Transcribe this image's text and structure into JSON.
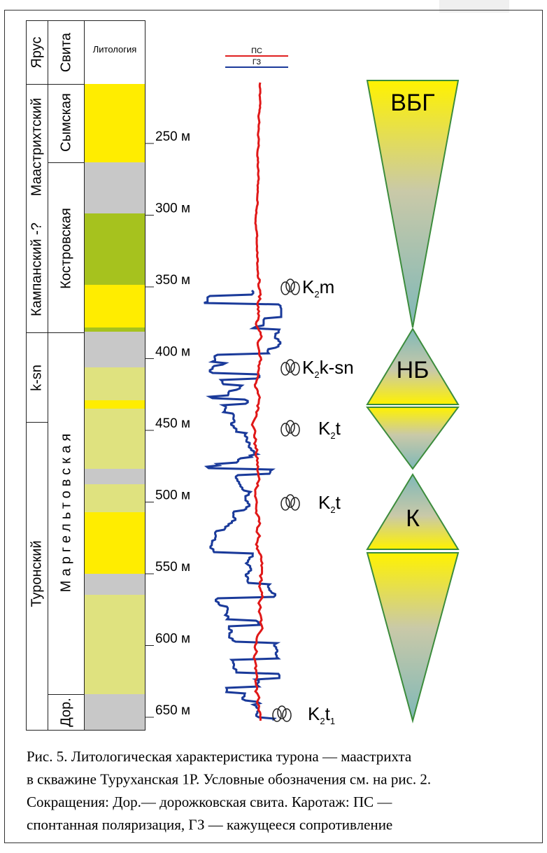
{
  "header": {
    "columns": [
      "Ярус",
      "Свита",
      "Литология"
    ]
  },
  "stages": [
    "Маастрихтский",
    "Кампанский -?",
    "k-sn",
    "Туронский"
  ],
  "suites": [
    "Сымская",
    "Костровская",
    "Маргельтовская",
    "Дор."
  ],
  "depths": [
    "250 м",
    "300 м",
    "350 м",
    "400 м",
    "450 м",
    "500 м",
    "550 м",
    "600 м",
    "650 м"
  ],
  "legend": [
    "ПС",
    "ГЗ"
  ],
  "fossils": [
    {
      "base": "K",
      "sub": "2",
      "rest": "m"
    },
    {
      "base": "K",
      "sub": "2",
      "rest": "k-sn"
    },
    {
      "base": "K",
      "sub": "2",
      "rest": "t"
    },
    {
      "base": "K",
      "sub": "2",
      "rest": "t"
    },
    {
      "base": "K",
      "sub": "2",
      "rest": "t",
      "sub2": "1"
    }
  ],
  "cycles": [
    "ВБГ",
    "НБ",
    "К"
  ],
  "caption": [
    "Рис. 5. Литологическая характеристика турона — маастрихта",
    "в скважине Туруханская 1Р. Условные обозначения см. на рис. 2.",
    "Сокращения: Дор.— дорожковская свита. Каротаж: ПС —",
    "спонтанная поляризация, ГЗ — кажущееся сопротивление"
  ]
}
